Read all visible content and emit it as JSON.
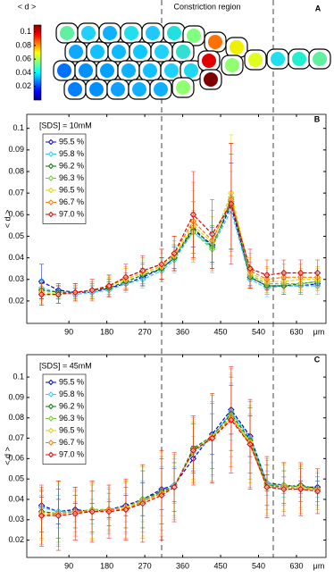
{
  "chart_data": [
    {
      "type": "colorbar",
      "title": "Constriction region",
      "panel_label": "A",
      "clabel": "< d >",
      "clim": [
        0,
        0.11
      ],
      "cticks": [
        0.02,
        0.04,
        0.06,
        0.08,
        0.1
      ]
    },
    {
      "type": "line",
      "annotation": "[SDS] = 10mM",
      "panel_label": "B",
      "ylabel": "< d >",
      "xlabel": "μm",
      "legend": "upper left",
      "xlim": [
        -10,
        700
      ],
      "ylim": [
        0.0096,
        0.1065
      ],
      "xticks": [
        90,
        180,
        270,
        360,
        450,
        540,
        630
      ],
      "yticks": [
        0.02,
        0.03,
        0.04,
        0.05,
        0.06,
        0.07,
        0.08,
        0.09,
        0.1
      ],
      "x": [
        25,
        65,
        105,
        145,
        185,
        225,
        265,
        310,
        340,
        385,
        430,
        475,
        520,
        560,
        600,
        640,
        680
      ],
      "series": [
        {
          "name": "95.5 %",
          "color": "#0000c8",
          "values": [
            0.029,
            0.025,
            0.024,
            0.024,
            0.026,
            0.028,
            0.031,
            0.035,
            0.04,
            0.053,
            0.046,
            0.064,
            0.031,
            0.027,
            0.027,
            0.027,
            0.028
          ],
          "errors": [
            0.008,
            0.003,
            0.002,
            0.003,
            0.003,
            0.003,
            0.004,
            0.005,
            0.005,
            0.008,
            0.008,
            0.02,
            0.004,
            0.004,
            0.003,
            0.004,
            0.003
          ]
        },
        {
          "name": "95.8 %",
          "color": "#30c8ff",
          "values": [
            0.026,
            0.024,
            0.023,
            0.024,
            0.025,
            0.028,
            0.03,
            0.034,
            0.039,
            0.052,
            0.045,
            0.062,
            0.03,
            0.026,
            0.027,
            0.027,
            0.027
          ],
          "errors": [
            0.004,
            0.003,
            0.003,
            0.003,
            0.003,
            0.004,
            0.004,
            0.005,
            0.006,
            0.01,
            0.008,
            0.018,
            0.004,
            0.004,
            0.004,
            0.004,
            0.004
          ]
        },
        {
          "name": "96.2 %",
          "color": "#007a00",
          "values": [
            0.025,
            0.024,
            0.024,
            0.025,
            0.026,
            0.029,
            0.032,
            0.035,
            0.04,
            0.054,
            0.045,
            0.066,
            0.031,
            0.027,
            0.027,
            0.028,
            0.029
          ],
          "errors": [
            0.004,
            0.003,
            0.003,
            0.003,
            0.004,
            0.004,
            0.005,
            0.005,
            0.006,
            0.012,
            0.01,
            0.022,
            0.005,
            0.004,
            0.004,
            0.004,
            0.004
          ]
        },
        {
          "name": "96.3 %",
          "color": "#70c830",
          "values": [
            0.024,
            0.023,
            0.024,
            0.025,
            0.027,
            0.03,
            0.033,
            0.036,
            0.041,
            0.052,
            0.044,
            0.068,
            0.032,
            0.028,
            0.028,
            0.028,
            0.029
          ],
          "errors": [
            0.004,
            0.004,
            0.003,
            0.004,
            0.004,
            0.005,
            0.005,
            0.006,
            0.007,
            0.014,
            0.011,
            0.025,
            0.006,
            0.005,
            0.004,
            0.005,
            0.004
          ]
        },
        {
          "name": "96.5 %",
          "color": "#e6d200",
          "values": [
            0.024,
            0.023,
            0.024,
            0.025,
            0.027,
            0.03,
            0.033,
            0.036,
            0.041,
            0.055,
            0.047,
            0.07,
            0.033,
            0.029,
            0.029,
            0.03,
            0.03
          ],
          "errors": [
            0.005,
            0.004,
            0.004,
            0.004,
            0.004,
            0.005,
            0.006,
            0.006,
            0.007,
            0.016,
            0.012,
            0.027,
            0.007,
            0.006,
            0.005,
            0.005,
            0.005
          ]
        },
        {
          "name": "96.7 %",
          "color": "#ff7a00",
          "values": [
            0.023,
            0.023,
            0.024,
            0.025,
            0.027,
            0.031,
            0.034,
            0.037,
            0.042,
            0.057,
            0.048,
            0.067,
            0.034,
            0.03,
            0.031,
            0.031,
            0.031
          ],
          "errors": [
            0.005,
            0.004,
            0.004,
            0.004,
            0.005,
            0.005,
            0.006,
            0.007,
            0.008,
            0.018,
            0.014,
            0.026,
            0.008,
            0.006,
            0.006,
            0.006,
            0.005
          ]
        },
        {
          "name": "97.0 %",
          "color": "#e00000",
          "values": [
            0.023,
            0.023,
            0.024,
            0.025,
            0.027,
            0.031,
            0.034,
            0.037,
            0.042,
            0.06,
            0.051,
            0.065,
            0.035,
            0.032,
            0.033,
            0.033,
            0.033
          ],
          "errors": [
            0.005,
            0.004,
            0.004,
            0.005,
            0.005,
            0.006,
            0.007,
            0.007,
            0.008,
            0.02,
            0.016,
            0.028,
            0.009,
            0.007,
            0.006,
            0.006,
            0.006
          ]
        }
      ]
    },
    {
      "type": "line",
      "annotation": "[SDS] = 45mM",
      "panel_label": "C",
      "ylabel": "< d >",
      "xlabel": "μm",
      "legend": "upper left",
      "xlim": [
        -10,
        700
      ],
      "ylim": [
        0.0115,
        0.111
      ],
      "xticks": [
        90,
        180,
        270,
        360,
        450,
        540,
        630
      ],
      "yticks": [
        0.02,
        0.03,
        0.04,
        0.05,
        0.06,
        0.07,
        0.08,
        0.09,
        0.1
      ],
      "x": [
        25,
        65,
        105,
        145,
        185,
        225,
        265,
        310,
        340,
        385,
        430,
        475,
        520,
        560,
        600,
        640,
        680
      ],
      "series": [
        {
          "name": "95.5 %",
          "color": "#0000c8",
          "values": [
            0.037,
            0.034,
            0.035,
            0.034,
            0.035,
            0.037,
            0.04,
            0.045,
            0.047,
            0.06,
            0.072,
            0.084,
            0.071,
            0.048,
            0.047,
            0.046,
            0.046
          ],
          "errors": [
            0.004,
            0.006,
            0.003,
            0.004,
            0.004,
            0.005,
            0.008,
            0.01,
            0.008,
            0.006,
            0.01,
            0.012,
            0.01,
            0.004,
            0.004,
            0.003,
            0.003
          ]
        },
        {
          "name": "95.8 %",
          "color": "#30c8ff",
          "values": [
            0.036,
            0.034,
            0.034,
            0.034,
            0.035,
            0.036,
            0.039,
            0.044,
            0.047,
            0.063,
            0.07,
            0.083,
            0.07,
            0.048,
            0.046,
            0.046,
            0.045
          ],
          "errors": [
            0.006,
            0.008,
            0.005,
            0.006,
            0.005,
            0.007,
            0.01,
            0.012,
            0.009,
            0.008,
            0.012,
            0.014,
            0.012,
            0.006,
            0.005,
            0.005,
            0.004
          ]
        },
        {
          "name": "96.2 %",
          "color": "#007a00",
          "values": [
            0.034,
            0.033,
            0.034,
            0.034,
            0.035,
            0.036,
            0.04,
            0.044,
            0.046,
            0.065,
            0.071,
            0.082,
            0.069,
            0.047,
            0.046,
            0.047,
            0.045
          ],
          "errors": [
            0.01,
            0.012,
            0.008,
            0.01,
            0.008,
            0.01,
            0.014,
            0.016,
            0.012,
            0.012,
            0.016,
            0.018,
            0.016,
            0.01,
            0.008,
            0.008,
            0.006
          ]
        },
        {
          "name": "96.3 %",
          "color": "#70c830",
          "values": [
            0.033,
            0.033,
            0.034,
            0.035,
            0.035,
            0.036,
            0.04,
            0.043,
            0.046,
            0.064,
            0.07,
            0.081,
            0.068,
            0.047,
            0.047,
            0.046,
            0.045
          ],
          "errors": [
            0.012,
            0.014,
            0.01,
            0.012,
            0.01,
            0.012,
            0.016,
            0.018,
            0.014,
            0.014,
            0.018,
            0.02,
            0.018,
            0.012,
            0.01,
            0.01,
            0.008
          ]
        },
        {
          "name": "96.5 %",
          "color": "#e6d200",
          "values": [
            0.033,
            0.033,
            0.034,
            0.034,
            0.035,
            0.036,
            0.039,
            0.043,
            0.046,
            0.064,
            0.071,
            0.08,
            0.068,
            0.046,
            0.046,
            0.046,
            0.045
          ],
          "errors": [
            0.013,
            0.015,
            0.011,
            0.013,
            0.011,
            0.013,
            0.017,
            0.02,
            0.015,
            0.015,
            0.02,
            0.022,
            0.02,
            0.013,
            0.011,
            0.011,
            0.009
          ]
        },
        {
          "name": "96.7 %",
          "color": "#ff7a00",
          "values": [
            0.032,
            0.033,
            0.034,
            0.034,
            0.035,
            0.035,
            0.039,
            0.043,
            0.046,
            0.064,
            0.07,
            0.08,
            0.067,
            0.046,
            0.046,
            0.045,
            0.045
          ],
          "errors": [
            0.014,
            0.016,
            0.012,
            0.014,
            0.012,
            0.014,
            0.018,
            0.021,
            0.016,
            0.016,
            0.021,
            0.024,
            0.021,
            0.014,
            0.012,
            0.012,
            0.01
          ]
        },
        {
          "name": "97.0 %",
          "color": "#e00000",
          "values": [
            0.032,
            0.032,
            0.033,
            0.034,
            0.034,
            0.035,
            0.038,
            0.042,
            0.046,
            0.064,
            0.07,
            0.079,
            0.067,
            0.046,
            0.045,
            0.045,
            0.044
          ],
          "errors": [
            0.015,
            0.017,
            0.013,
            0.015,
            0.013,
            0.015,
            0.019,
            0.022,
            0.017,
            0.017,
            0.022,
            0.026,
            0.022,
            0.015,
            0.013,
            0.013,
            0.011
          ]
        }
      ]
    }
  ]
}
